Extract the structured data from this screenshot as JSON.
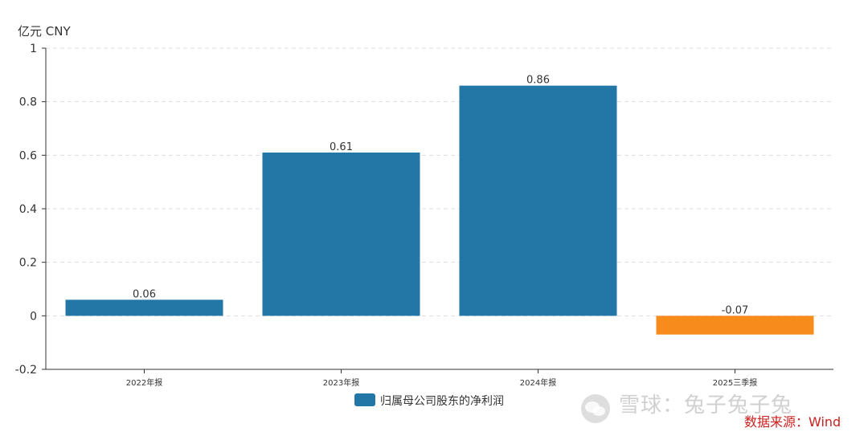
{
  "chart_data": {
    "type": "bar",
    "unit_label": "亿元  CNY",
    "categories": [
      "2022年报",
      "2023年报",
      "2024年报",
      "2025三季报"
    ],
    "values": [
      0.06,
      0.61,
      0.86,
      -0.07
    ],
    "value_labels": [
      "0.06",
      "0.61",
      "0.86",
      "-0.07"
    ],
    "bar_colors": [
      "#2277a7",
      "#2277a7",
      "#2277a7",
      "#f78c1c"
    ],
    "ylim": [
      -0.2,
      1
    ],
    "yticks": [
      -0.2,
      0,
      0.2,
      0.4,
      0.6,
      0.8,
      1
    ],
    "ytick_labels": [
      "-0.2",
      "0",
      "0.2",
      "0.4",
      "0.6",
      "0.8",
      "1"
    ],
    "grid": true,
    "legend": {
      "label": "归属母公司股东的净利润",
      "color": "#2277a7",
      "position": "bottom-center"
    }
  },
  "watermark": {
    "text": "雪球：兔子兔子兔"
  },
  "source": {
    "text": "数据来源：Wind"
  }
}
